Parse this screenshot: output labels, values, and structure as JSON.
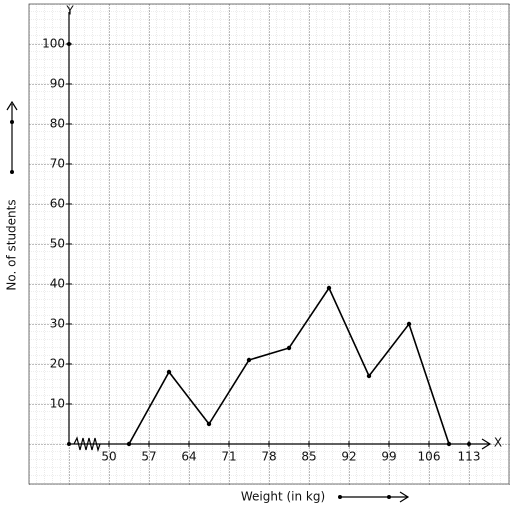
{
  "chart_data": {
    "type": "line",
    "x_label": "Weight (in kg)",
    "y_label": "No. of students",
    "x_axis_name": "X",
    "y_axis_name": "Y",
    "x": [
      53.5,
      60.5,
      67.5,
      74.5,
      81.5,
      88.5,
      95.5,
      102.5,
      109.5
    ],
    "values": [
      0,
      18,
      5,
      21,
      24,
      39,
      17,
      30,
      0
    ],
    "color": "#000000",
    "xlim": [
      43,
      117
    ],
    "ylim": [
      0,
      110
    ],
    "xticks": [
      50,
      57,
      64,
      71,
      78,
      85,
      92,
      99,
      106,
      113
    ],
    "yticks": [
      10,
      20,
      30,
      40,
      50,
      60,
      70,
      80,
      90,
      100
    ],
    "grid": true
  }
}
